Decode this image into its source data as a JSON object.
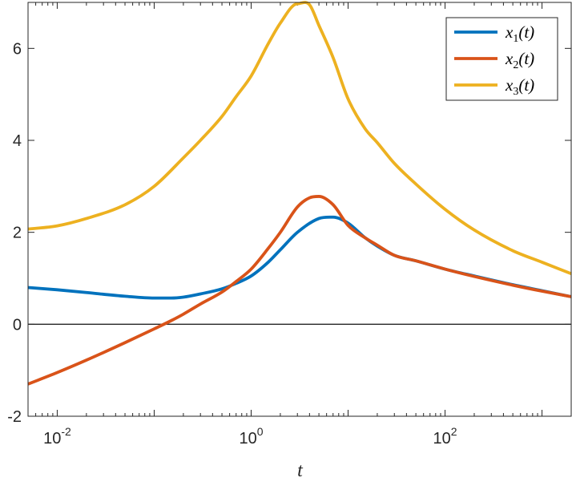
{
  "chart_data": {
    "type": "line",
    "title": "",
    "xlabel": "t",
    "ylabel": "",
    "xscale": "log",
    "xlim": [
      0.005,
      2000
    ],
    "ylim": [
      -2,
      7
    ],
    "x_ticks": [
      {
        "value": 0.01,
        "base": "10",
        "exp": "-2"
      },
      {
        "value": 1,
        "base": "10",
        "exp": "0"
      },
      {
        "value": 100,
        "base": "10",
        "exp": "2"
      }
    ],
    "y_ticks": [
      {
        "value": -2,
        "label": "-2"
      },
      {
        "value": 0,
        "label": "0"
      },
      {
        "value": 2,
        "label": "2"
      },
      {
        "value": 4,
        "label": "4"
      },
      {
        "value": 6,
        "label": "6"
      }
    ],
    "reference_line": {
      "y": 0,
      "color": "#262626"
    },
    "grid": false,
    "legend": {
      "position": "top-right"
    },
    "series": [
      {
        "name": "x1(t)",
        "label_var": "x",
        "label_sub": "1",
        "label_arg": "(t)",
        "color": "#0072BD",
        "x": [
          0.005,
          0.01,
          0.02,
          0.05,
          0.1,
          0.15,
          0.2,
          0.3,
          0.5,
          0.7,
          1,
          1.5,
          2,
          3,
          5,
          7,
          10,
          15,
          20,
          30,
          50,
          100,
          200,
          500,
          1000,
          2000
        ],
        "y": [
          0.8,
          0.75,
          0.69,
          0.61,
          0.57,
          0.57,
          0.59,
          0.66,
          0.77,
          0.89,
          1.05,
          1.35,
          1.62,
          2.0,
          2.3,
          2.33,
          2.2,
          1.88,
          1.7,
          1.5,
          1.38,
          1.2,
          1.05,
          0.86,
          0.73,
          0.6
        ]
      },
      {
        "name": "x2(t)",
        "label_var": "x",
        "label_sub": "2",
        "label_arg": "(t)",
        "color": "#D95319",
        "x": [
          0.005,
          0.01,
          0.02,
          0.05,
          0.1,
          0.15,
          0.2,
          0.3,
          0.5,
          0.7,
          1,
          1.5,
          2,
          3,
          4,
          5,
          7,
          10,
          15,
          20,
          30,
          50,
          100,
          200,
          500,
          1000,
          2000
        ],
        "y": [
          -1.3,
          -1.05,
          -0.78,
          -0.4,
          -0.1,
          0.08,
          0.22,
          0.44,
          0.7,
          0.93,
          1.2,
          1.65,
          2.0,
          2.55,
          2.75,
          2.78,
          2.6,
          2.15,
          1.88,
          1.72,
          1.5,
          1.38,
          1.2,
          1.04,
          0.85,
          0.72,
          0.6
        ]
      },
      {
        "name": "x3(t)",
        "label_var": "x",
        "label_sub": "3",
        "label_arg": "(t)",
        "color": "#EDB120",
        "x": [
          0.005,
          0.01,
          0.02,
          0.05,
          0.1,
          0.2,
          0.3,
          0.5,
          0.7,
          1,
          1.5,
          2,
          3,
          4,
          5,
          7,
          10,
          15,
          20,
          30,
          50,
          100,
          200,
          500,
          1000,
          2000
        ],
        "y": [
          2.07,
          2.14,
          2.3,
          2.6,
          3.0,
          3.62,
          4.0,
          4.52,
          4.95,
          5.4,
          6.1,
          6.55,
          6.97,
          6.95,
          6.5,
          5.8,
          4.9,
          4.25,
          3.95,
          3.5,
          3.05,
          2.5,
          2.05,
          1.6,
          1.35,
          1.1
        ]
      }
    ]
  }
}
